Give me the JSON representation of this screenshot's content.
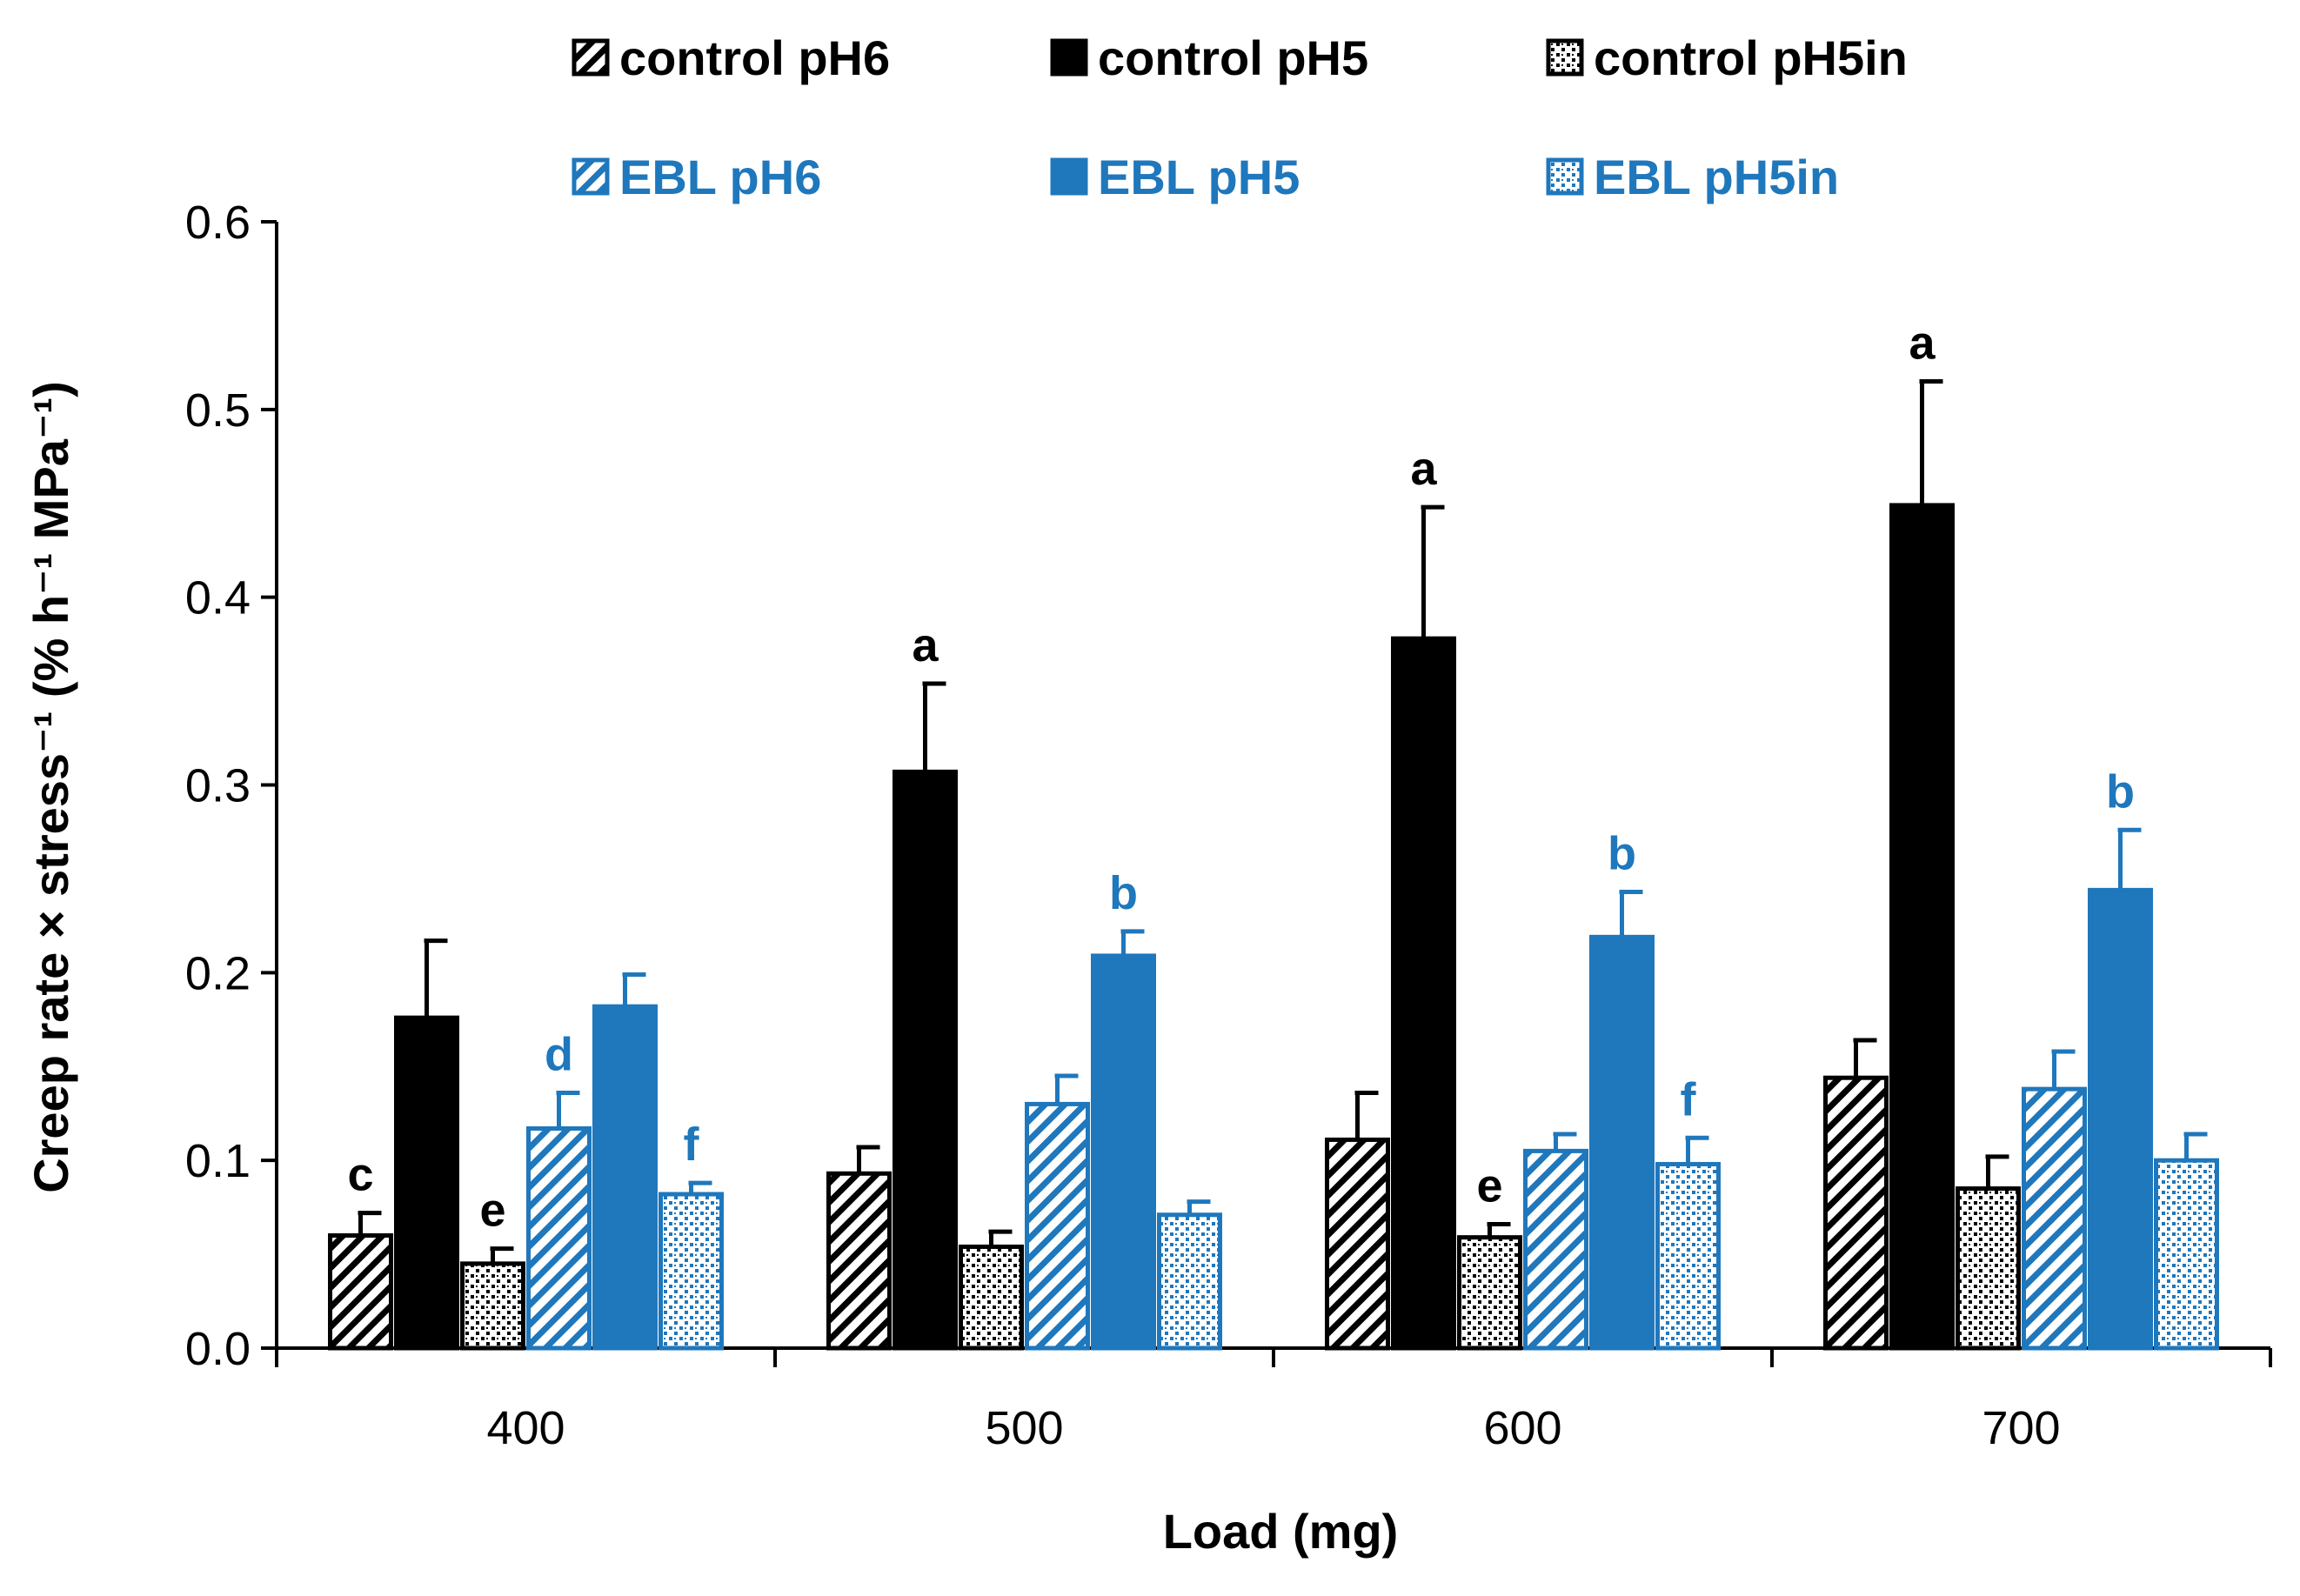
{
  "chart_data": {
    "type": "bar",
    "xlabel": "Load (mg)",
    "ylabel": "Creep rate × stress⁻¹ (% h⁻¹ MPa⁻¹)",
    "ylim": [
      0,
      0.6
    ],
    "yticks": [
      0.0,
      0.1,
      0.2,
      0.3,
      0.4,
      0.5,
      0.6
    ],
    "ytick_labels": [
      "0.0",
      "0.1",
      "0.2",
      "0.3",
      "0.4",
      "0.5",
      "0.6"
    ],
    "categories": [
      "400",
      "500",
      "600",
      "700"
    ],
    "legend_position": "top",
    "series": [
      {
        "name": "control pH6",
        "pattern": "hatch",
        "color": "#000000",
        "values": [
          0.06,
          0.093,
          0.111,
          0.144
        ],
        "errors": [
          0.012,
          0.014,
          0.025,
          0.02
        ],
        "letters": [
          "c",
          "",
          "",
          ""
        ]
      },
      {
        "name": "control pH5",
        "pattern": "solid",
        "color": "#000000",
        "values": [
          0.176,
          0.307,
          0.378,
          0.449
        ],
        "errors": [
          0.041,
          0.047,
          0.07,
          0.066
        ],
        "letters": [
          "",
          "a",
          "a",
          "a"
        ]
      },
      {
        "name": "control pH5in",
        "pattern": "dots",
        "color": "#000000",
        "values": [
          0.045,
          0.054,
          0.059,
          0.085
        ],
        "errors": [
          0.008,
          0.008,
          0.007,
          0.017
        ],
        "letters": [
          "e",
          "",
          "e",
          ""
        ]
      },
      {
        "name": "EBL pH6",
        "pattern": "hatch",
        "color": "#1f77bc",
        "values": [
          0.117,
          0.13,
          0.105,
          0.138
        ],
        "errors": [
          0.019,
          0.015,
          0.009,
          0.02
        ],
        "letters": [
          "d",
          "",
          "",
          ""
        ]
      },
      {
        "name": "EBL pH5",
        "pattern": "solid",
        "color": "#1f77bc",
        "values": [
          0.182,
          0.209,
          0.219,
          0.244
        ],
        "errors": [
          0.017,
          0.013,
          0.024,
          0.032
        ],
        "letters": [
          "",
          "b",
          "b",
          "b"
        ]
      },
      {
        "name": "EBL pH5in",
        "pattern": "dots",
        "color": "#1f77bc",
        "values": [
          0.082,
          0.071,
          0.098,
          0.1
        ],
        "errors": [
          0.006,
          0.007,
          0.014,
          0.014
        ],
        "letters": [
          "f",
          "",
          "f",
          ""
        ]
      }
    ]
  }
}
